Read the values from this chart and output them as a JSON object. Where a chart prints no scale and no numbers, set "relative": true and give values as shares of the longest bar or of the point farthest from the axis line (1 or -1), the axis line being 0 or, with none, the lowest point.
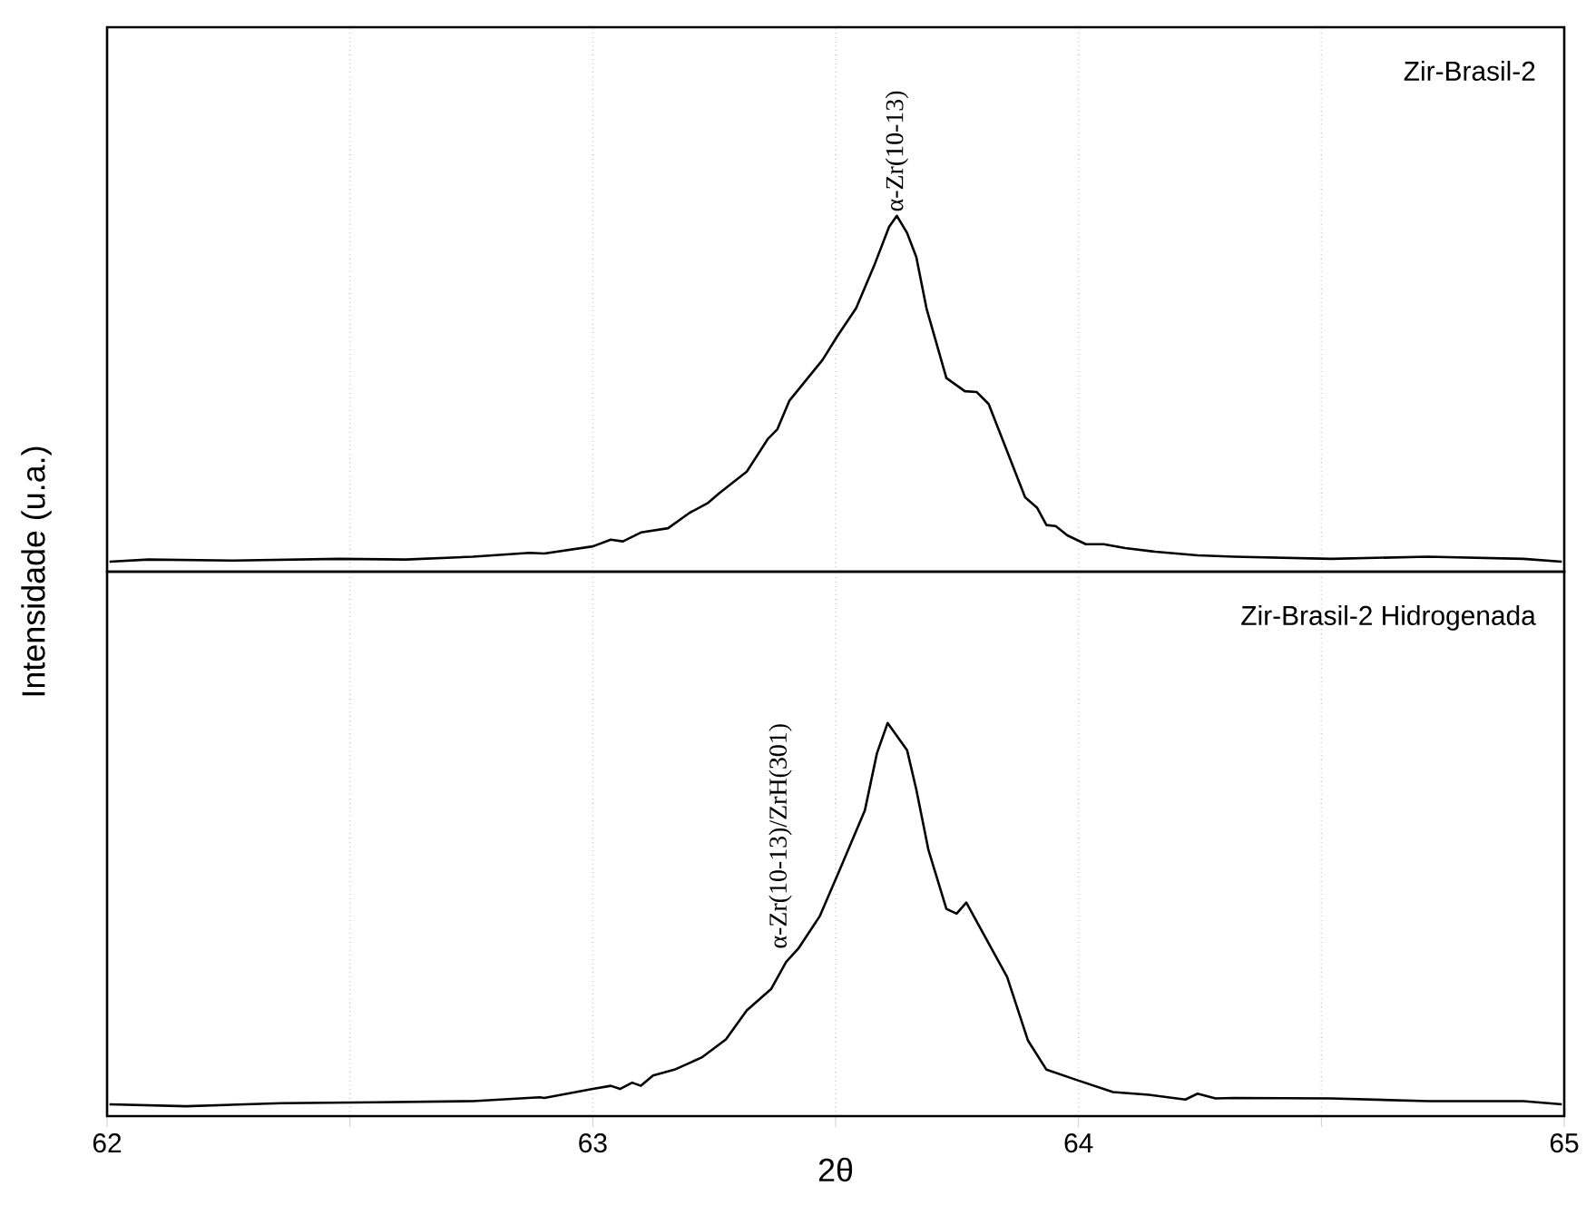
{
  "chart_data": [
    {
      "type": "line",
      "relative": true,
      "xlim": [
        62,
        65
      ],
      "xticks": [
        62,
        {
          "value": 62.5,
          "label": null
        },
        63,
        {
          "value": 63.5,
          "label": null
        },
        64,
        {
          "value": 64.5,
          "label": null
        },
        65
      ],
      "grid": "x",
      "tick_labels": false,
      "legend": false,
      "ylabel": "Intensidade (u.a.)",
      "annotations": [
        {
          "text": "α-Zr(10-13)",
          "x": 63.626,
          "y": 1
        }
      ],
      "series": [
        {
          "name": "Zir-Brasil-2",
          "color": "#000000",
          "x": [
            62.005,
            62.085,
            62.26,
            62.477,
            62.615,
            62.753,
            62.87,
            62.9,
            63.0,
            63.037,
            63.062,
            63.099,
            63.155,
            63.199,
            63.236,
            63.261,
            63.317,
            63.361,
            63.38,
            63.405,
            63.473,
            63.504,
            63.542,
            63.579,
            63.61,
            63.626,
            63.647,
            63.666,
            63.687,
            63.728,
            63.766,
            63.79,
            63.815,
            63.89,
            63.915,
            63.934,
            63.953,
            63.977,
            64.015,
            64.052,
            64.096,
            64.158,
            64.245,
            64.32,
            64.52,
            64.719,
            64.916,
            64.995
          ],
          "values": [
            0.028,
            0.034,
            0.031,
            0.036,
            0.034,
            0.042,
            0.053,
            0.051,
            0.071,
            0.09,
            0.085,
            0.11,
            0.122,
            0.165,
            0.192,
            0.221,
            0.281,
            0.374,
            0.4,
            0.481,
            0.595,
            0.663,
            0.74,
            0.859,
            0.969,
            1,
            0.952,
            0.884,
            0.74,
            0.544,
            0.507,
            0.505,
            0.471,
            0.209,
            0.179,
            0.131,
            0.128,
            0.102,
            0.077,
            0.077,
            0.066,
            0.056,
            0.046,
            0.042,
            0.036,
            0.042,
            0.036,
            0.028
          ]
        }
      ]
    },
    {
      "type": "line",
      "relative": true,
      "xlim": [
        62,
        65
      ],
      "xticks": [
        62,
        {
          "value": 62.5,
          "label": null
        },
        63,
        {
          "value": 63.5,
          "label": null
        },
        64,
        {
          "value": 64.5,
          "label": null
        },
        65
      ],
      "grid": "x",
      "tick_labels": "x",
      "legend": false,
      "xlabel": "2θ",
      "annotations": [
        "α-Zr(10-13)/ZrH(301)"
      ],
      "series": [
        {
          "name": "Zir-Brasil-2 Hidrogenada",
          "color": "#000000",
          "x": [
            62.005,
            62.163,
            62.36,
            62.556,
            62.753,
            62.891,
            62.9,
            63.0,
            63.037,
            63.056,
            63.081,
            63.099,
            63.124,
            63.168,
            63.224,
            63.274,
            63.317,
            63.367,
            63.398,
            63.423,
            63.467,
            63.51,
            63.56,
            63.585,
            63.607,
            63.647,
            63.666,
            63.691,
            63.728,
            63.749,
            63.769,
            63.853,
            63.896,
            63.934,
            63.996,
            64.071,
            64.145,
            64.22,
            64.245,
            64.282,
            64.32,
            64.52,
            64.72,
            64.916,
            64.995
          ],
          "values": [
            0.03,
            0.025,
            0.033,
            0.035,
            0.038,
            0.048,
            0.046,
            0.069,
            0.077,
            0.069,
            0.085,
            0.077,
            0.103,
            0.118,
            0.149,
            0.195,
            0.269,
            0.323,
            0.392,
            0.426,
            0.508,
            0.631,
            0.777,
            0.923,
            1,
            0.931,
            0.831,
            0.677,
            0.527,
            0.515,
            0.543,
            0.354,
            0.192,
            0.118,
            0.092,
            0.061,
            0.054,
            0.042,
            0.057,
            0.045,
            0.046,
            0.045,
            0.038,
            0.038,
            0.03
          ]
        }
      ]
    }
  ]
}
